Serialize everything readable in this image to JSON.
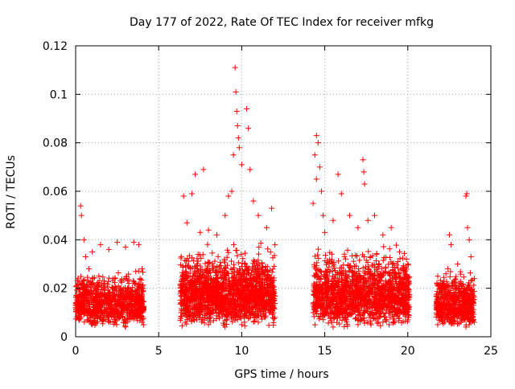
{
  "chart_data": {
    "type": "scatter",
    "title": "Day 177 of 2022, Rate Of TEC Index for receiver mfkg",
    "xlabel": "GPS time / hours",
    "ylabel": "ROTI / TECUs",
    "xlim": [
      0,
      25
    ],
    "ylim": [
      0,
      0.12
    ],
    "x_ticks": [
      0,
      5,
      10,
      15,
      20,
      25
    ],
    "x_tick_labels": [
      "0",
      "5",
      "10",
      "15",
      "20",
      "25"
    ],
    "y_ticks": [
      0,
      0.02,
      0.04,
      0.06,
      0.08,
      0.1,
      0.12
    ],
    "y_tick_labels": [
      "0",
      "0.02",
      "0.04",
      "0.06",
      "0.08",
      "0.1",
      "0.12"
    ],
    "grid": true,
    "marker": "+",
    "color": "#ff0000",
    "series": [
      {
        "points": [
          [
            0.0,
            0.012
          ],
          [
            0.3,
            0.054
          ],
          [
            0.35,
            0.05
          ],
          [
            0.5,
            0.04
          ],
          [
            0.6,
            0.033
          ],
          [
            0.8,
            0.028
          ],
          [
            1.0,
            0.035
          ],
          [
            1.5,
            0.038
          ],
          [
            2.0,
            0.036
          ],
          [
            2.5,
            0.039
          ],
          [
            3.0,
            0.037
          ],
          [
            3.5,
            0.039
          ],
          [
            3.8,
            0.038
          ],
          [
            4.0,
            0.028
          ],
          [
            0.2,
            0.008
          ],
          [
            1.0,
            0.005
          ],
          [
            2.0,
            0.006
          ],
          [
            3.0,
            0.004
          ],
          [
            4.0,
            0.006
          ],
          [
            1.2,
            0.02
          ],
          [
            2.2,
            0.018
          ],
          [
            3.2,
            0.022
          ],
          [
            3.6,
            0.015
          ],
          [
            6.5,
            0.058
          ],
          [
            6.7,
            0.047
          ],
          [
            7.0,
            0.059
          ],
          [
            7.2,
            0.067
          ],
          [
            7.5,
            0.043
          ],
          [
            7.7,
            0.069
          ],
          [
            8.0,
            0.044
          ],
          [
            8.5,
            0.042
          ],
          [
            9.0,
            0.05
          ],
          [
            9.2,
            0.058
          ],
          [
            9.4,
            0.06
          ],
          [
            9.5,
            0.075
          ],
          [
            9.6,
            0.111
          ],
          [
            9.65,
            0.101
          ],
          [
            9.7,
            0.093
          ],
          [
            9.75,
            0.087
          ],
          [
            9.8,
            0.082
          ],
          [
            9.85,
            0.078
          ],
          [
            10.0,
            0.071
          ],
          [
            10.3,
            0.094
          ],
          [
            10.4,
            0.086
          ],
          [
            10.5,
            0.069
          ],
          [
            10.7,
            0.056
          ],
          [
            11.0,
            0.05
          ],
          [
            11.5,
            0.045
          ],
          [
            11.8,
            0.053
          ],
          [
            12.0,
            0.038
          ],
          [
            6.6,
            0.006
          ],
          [
            8.0,
            0.005
          ],
          [
            9.0,
            0.004
          ],
          [
            10.0,
            0.005
          ],
          [
            11.0,
            0.006
          ],
          [
            12.0,
            0.008
          ],
          [
            14.5,
            0.083
          ],
          [
            14.6,
            0.08
          ],
          [
            14.4,
            0.075
          ],
          [
            14.7,
            0.07
          ],
          [
            14.5,
            0.065
          ],
          [
            14.8,
            0.06
          ],
          [
            14.3,
            0.055
          ],
          [
            14.9,
            0.05
          ],
          [
            15.0,
            0.043
          ],
          [
            15.5,
            0.048
          ],
          [
            15.8,
            0.067
          ],
          [
            16.0,
            0.059
          ],
          [
            16.5,
            0.05
          ],
          [
            17.0,
            0.045
          ],
          [
            17.3,
            0.073
          ],
          [
            17.35,
            0.068
          ],
          [
            17.4,
            0.063
          ],
          [
            17.6,
            0.048
          ],
          [
            18.0,
            0.05
          ],
          [
            18.5,
            0.042
          ],
          [
            19.0,
            0.045
          ],
          [
            19.5,
            0.035
          ],
          [
            20.0,
            0.03
          ],
          [
            14.3,
            0.01
          ],
          [
            15.5,
            0.004
          ],
          [
            17.0,
            0.005
          ],
          [
            18.5,
            0.006
          ],
          [
            20.0,
            0.007
          ],
          [
            21.8,
            0.025
          ],
          [
            22.0,
            0.02
          ],
          [
            22.5,
            0.042
          ],
          [
            22.6,
            0.038
          ],
          [
            23.0,
            0.03
          ],
          [
            23.5,
            0.058
          ],
          [
            23.55,
            0.059
          ],
          [
            23.6,
            0.045
          ],
          [
            23.7,
            0.04
          ],
          [
            23.8,
            0.033
          ],
          [
            24.0,
            0.024
          ],
          [
            21.8,
            0.005
          ],
          [
            22.5,
            0.006
          ],
          [
            23.5,
            0.004
          ],
          [
            24.0,
            0.006
          ]
        ]
      }
    ],
    "dense_bands": [
      {
        "x": [
          0.0,
          4.1
        ],
        "y_min": 0.004,
        "y_max": 0.03,
        "count": 900
      },
      {
        "x": [
          6.3,
          12.0
        ],
        "y_min": 0.004,
        "y_max": 0.04,
        "count": 1700
      },
      {
        "x": [
          14.3,
          20.1
        ],
        "y_min": 0.004,
        "y_max": 0.04,
        "count": 1500
      },
      {
        "x": [
          21.7,
          24.0
        ],
        "y_min": 0.004,
        "y_max": 0.03,
        "count": 600
      }
    ]
  }
}
